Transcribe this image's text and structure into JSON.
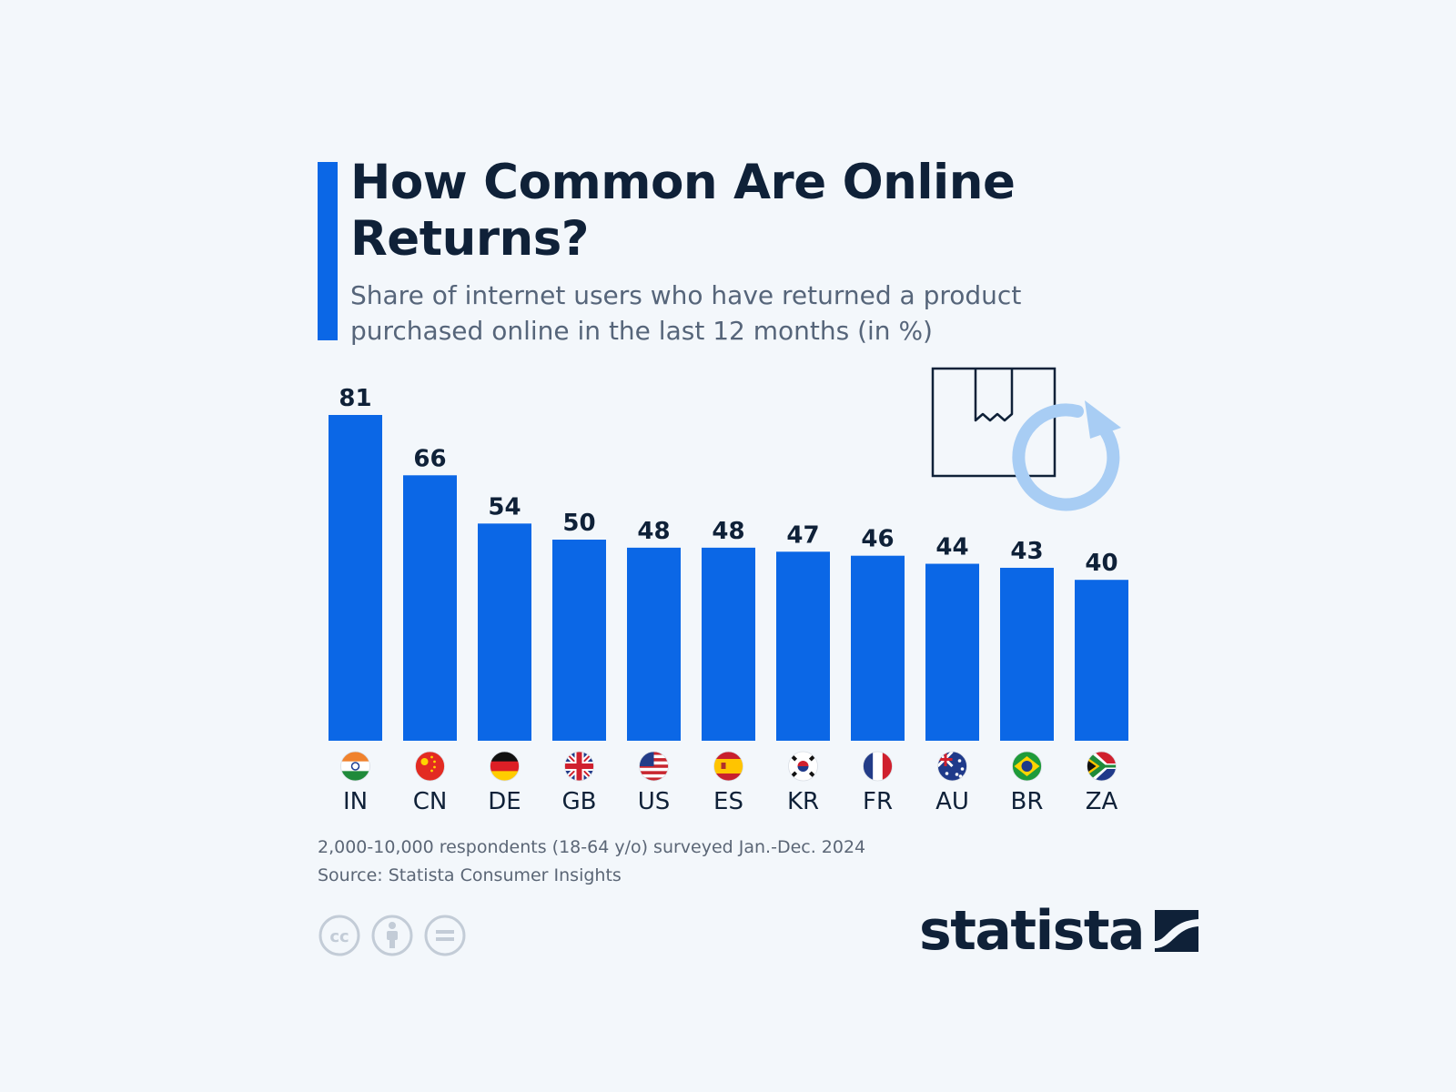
{
  "title": "How Common Are Online Returns?",
  "subtitle": "Share of internet users who have returned a product purchased online in the last 12 months (in %)",
  "chart_data": {
    "type": "bar",
    "categories": [
      "IN",
      "CN",
      "DE",
      "GB",
      "US",
      "ES",
      "KR",
      "FR",
      "AU",
      "BR",
      "ZA"
    ],
    "values": [
      81,
      66,
      54,
      50,
      48,
      48,
      47,
      46,
      44,
      43,
      40
    ],
    "xlabel": "",
    "ylabel": "",
    "ylim": [
      0,
      81
    ],
    "grid": false,
    "bar_color": "#0b67e6",
    "label_color": "#0f2138"
  },
  "footnote": "2,000-10,000 respondents (18-64 y/o) surveyed Jan.-Dec. 2024",
  "source": "Source: Statista Consumer Insights",
  "brand": "statista",
  "icons": [
    "cc-icon",
    "attribution-icon",
    "no-derivatives-icon",
    "package-return-icon",
    "statista-logo-mark"
  ],
  "colors": {
    "background": "#f3f7fb",
    "accent": "#0b67e6",
    "text_dark": "#0f2138",
    "return_arrow": "#a8cdf4"
  }
}
